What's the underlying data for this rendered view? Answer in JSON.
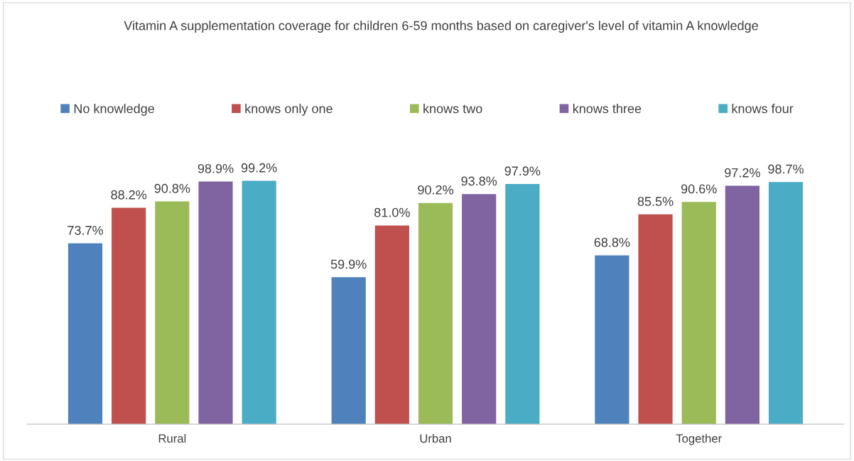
{
  "chart_data": {
    "type": "bar",
    "title": "Vitamin A supplementation coverage for children 6-59 months based on caregiver's level of vitamin A knowledge",
    "categories": [
      "Rural",
      "Urban",
      "Together"
    ],
    "series": [
      {
        "name": "No knowledge",
        "color": "#4f81bd",
        "values": [
          73.7,
          59.9,
          68.8
        ],
        "value_labels": [
          "73.7%",
          "59.9%",
          "68.8%"
        ]
      },
      {
        "name": "knows only one",
        "color": "#c0504d",
        "values": [
          88.2,
          81.0,
          85.5
        ],
        "value_labels": [
          "88.2%",
          "81.0%",
          "85.5%"
        ]
      },
      {
        "name": "knows two",
        "color": "#9bbb59",
        "values": [
          90.8,
          90.2,
          90.6
        ],
        "value_labels": [
          "90.8%",
          "90.2%",
          "90.6%"
        ]
      },
      {
        "name": "knows three",
        "color": "#8064a2",
        "values": [
          98.9,
          93.8,
          97.2
        ],
        "value_labels": [
          "98.9%",
          "93.8%",
          "97.2%"
        ]
      },
      {
        "name": "knows four",
        "color": "#4bacc6",
        "values": [
          99.2,
          97.9,
          98.7
        ],
        "value_labels": [
          "99.2%",
          "97.9%",
          "98.7%"
        ]
      }
    ],
    "legend": "top",
    "grid": false
  }
}
